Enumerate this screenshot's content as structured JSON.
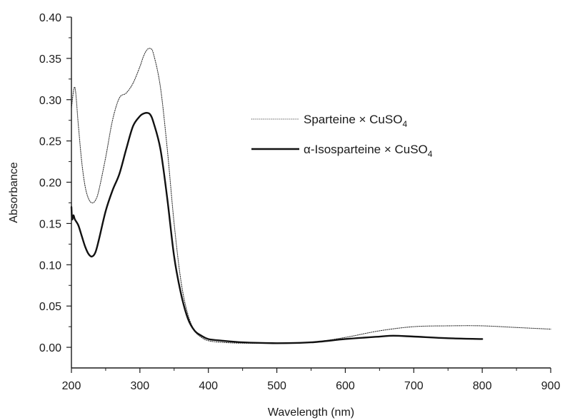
{
  "chart_data": {
    "type": "line",
    "xlabel": "Wavelength (nm)",
    "ylabel": "Absorbance",
    "xlim": [
      200,
      900
    ],
    "ylim": [
      -0.025,
      0.4
    ],
    "x_ticks": [
      200,
      300,
      400,
      500,
      600,
      700,
      800,
      900
    ],
    "y_ticks": [
      0.0,
      0.05,
      0.1,
      0.15,
      0.2,
      0.25,
      0.3,
      0.35,
      0.4
    ],
    "x_tick_labels": [
      "200",
      "300",
      "400",
      "500",
      "600",
      "700",
      "800",
      "900"
    ],
    "y_tick_labels": [
      "0.00",
      "0.05",
      "0.10",
      "0.15",
      "0.20",
      "0.25",
      "0.30",
      "0.35",
      "0.40"
    ],
    "grid": false,
    "legend_position": "upper-right",
    "series": [
      {
        "name": "Sparteine × CuSO",
        "name_subscript": "4",
        "line_style": "dotted",
        "color": "#333333",
        "x": [
          200,
          205,
          210,
          215,
          220,
          225,
          230,
          235,
          240,
          250,
          260,
          270,
          280,
          290,
          300,
          305,
          310,
          315,
          320,
          330,
          340,
          350,
          360,
          370,
          380,
          390,
          400,
          420,
          450,
          500,
          550,
          600,
          650,
          700,
          750,
          800,
          850,
          900
        ],
        "y": [
          0.29,
          0.315,
          0.27,
          0.225,
          0.195,
          0.18,
          0.175,
          0.178,
          0.19,
          0.23,
          0.275,
          0.302,
          0.308,
          0.32,
          0.34,
          0.352,
          0.36,
          0.362,
          0.355,
          0.315,
          0.24,
          0.15,
          0.08,
          0.04,
          0.02,
          0.012,
          0.008,
          0.006,
          0.005,
          0.005,
          0.006,
          0.012,
          0.02,
          0.025,
          0.026,
          0.026,
          0.024,
          0.022
        ]
      },
      {
        "name": "α-Isosparteine × CuSO",
        "name_subscript": "4",
        "line_style": "solid",
        "color": "#111111",
        "x": [
          200,
          201,
          203,
          205,
          210,
          215,
          220,
          225,
          230,
          235,
          240,
          250,
          260,
          270,
          280,
          290,
          300,
          305,
          310,
          315,
          320,
          330,
          340,
          350,
          360,
          370,
          380,
          390,
          400,
          420,
          450,
          500,
          550,
          600,
          650,
          670,
          700,
          750,
          800
        ],
        "y": [
          0.17,
          0.155,
          0.16,
          0.155,
          0.148,
          0.135,
          0.122,
          0.113,
          0.11,
          0.115,
          0.13,
          0.165,
          0.19,
          0.21,
          0.24,
          0.268,
          0.28,
          0.283,
          0.284,
          0.282,
          0.272,
          0.24,
          0.18,
          0.11,
          0.065,
          0.035,
          0.02,
          0.014,
          0.01,
          0.008,
          0.006,
          0.005,
          0.006,
          0.01,
          0.013,
          0.014,
          0.013,
          0.011,
          0.01
        ]
      }
    ]
  }
}
